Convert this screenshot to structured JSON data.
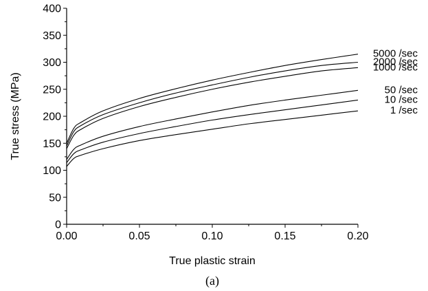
{
  "chart_data": {
    "type": "line",
    "xlabel": "True plastic strain",
    "ylabel": "True stress (MPa)",
    "caption": "(a)",
    "xlim": [
      0,
      0.2
    ],
    "ylim": [
      0,
      400
    ],
    "x_ticks": [
      "0.00",
      "0.05",
      "0.10",
      "0.15",
      "0.20"
    ],
    "y_ticks": [
      "0",
      "50",
      "100",
      "150",
      "200",
      "250",
      "300",
      "350",
      "400"
    ],
    "x_minor_step": 0.025,
    "y_minor_step": 25,
    "series": [
      {
        "name": "5000 /sec",
        "x": [
          0,
          0.005,
          0.01,
          0.025,
          0.05,
          0.075,
          0.1,
          0.125,
          0.15,
          0.175,
          0.2
        ],
        "y": [
          150,
          178,
          189,
          210,
          233,
          251,
          267,
          281,
          294,
          305,
          315
        ]
      },
      {
        "name": "2000 /sec",
        "x": [
          0,
          0.005,
          0.01,
          0.025,
          0.05,
          0.075,
          0.1,
          0.125,
          0.15,
          0.175,
          0.2
        ],
        "y": [
          145,
          172,
          183,
          203,
          225,
          243,
          258,
          272,
          284,
          294,
          300
        ]
      },
      {
        "name": "1000 /sec",
        "x": [
          0,
          0.005,
          0.01,
          0.025,
          0.05,
          0.075,
          0.1,
          0.125,
          0.15,
          0.175,
          0.2
        ],
        "y": [
          140,
          165,
          176,
          196,
          218,
          235,
          250,
          263,
          274,
          284,
          290
        ]
      },
      {
        "name": "50 /sec",
        "x": [
          0,
          0.005,
          0.01,
          0.025,
          0.05,
          0.075,
          0.1,
          0.125,
          0.15,
          0.175,
          0.2
        ],
        "y": [
          120,
          139,
          147,
          163,
          181,
          195,
          208,
          220,
          230,
          239,
          248
        ]
      },
      {
        "name": "10 /sec",
        "x": [
          0,
          0.005,
          0.01,
          0.025,
          0.05,
          0.075,
          0.1,
          0.125,
          0.15,
          0.175,
          0.2
        ],
        "y": [
          114,
          131,
          138,
          152,
          168,
          181,
          193,
          203,
          212,
          221,
          230
        ]
      },
      {
        "name": "1 /sec",
        "x": [
          0,
          0.005,
          0.01,
          0.025,
          0.05,
          0.075,
          0.1,
          0.125,
          0.15,
          0.175,
          0.2
        ],
        "y": [
          107,
          122,
          128,
          140,
          155,
          166,
          176,
          186,
          194,
          202,
          210
        ]
      }
    ]
  }
}
